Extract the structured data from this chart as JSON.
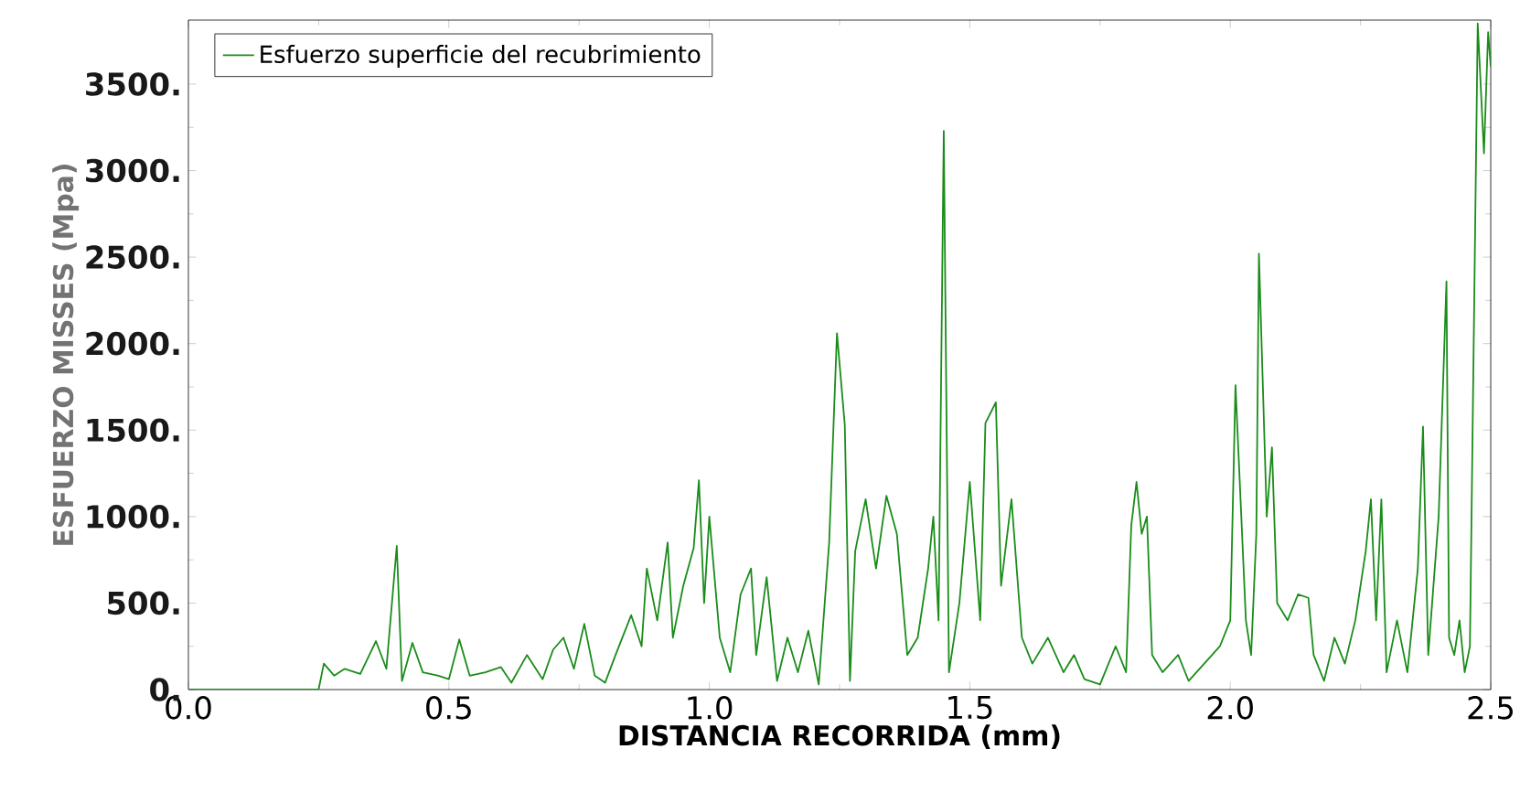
{
  "chart_data": {
    "type": "line",
    "xlabel": "DISTANCIA RECORRIDA (mm)",
    "ylabel": "ESFUERZO MISSES (Mpa)",
    "legend": "top left",
    "xlim": [
      0,
      2.5
    ],
    "ylim": [
      0,
      3870
    ],
    "xticks": [
      {
        "value": 0,
        "label": "0.0"
      },
      {
        "value": 0.5,
        "label": "0.5"
      },
      {
        "value": 1,
        "label": "1.0"
      },
      {
        "value": 1.5,
        "label": "1.5"
      },
      {
        "value": 2,
        "label": "2.0"
      },
      {
        "value": 2.5,
        "label": "2.5"
      }
    ],
    "yticks": [
      {
        "value": 0,
        "label": "0."
      },
      {
        "value": 500,
        "label": "500."
      },
      {
        "value": 1000,
        "label": "1000."
      },
      {
        "value": 1500,
        "label": "1500."
      },
      {
        "value": 2000,
        "label": "2000."
      },
      {
        "value": 2500,
        "label": "2500."
      },
      {
        "value": 3000,
        "label": "3000."
      },
      {
        "value": 3500,
        "label": "3500."
      }
    ],
    "series": [
      {
        "name": "Esfuerzo superficie del recubrimiento",
        "color": "#1a8c1a",
        "x": [
          0,
          0.25,
          0.26,
          0.28,
          0.3,
          0.33,
          0.36,
          0.38,
          0.4,
          0.41,
          0.43,
          0.45,
          0.48,
          0.5,
          0.52,
          0.54,
          0.57,
          0.6,
          0.62,
          0.65,
          0.68,
          0.7,
          0.72,
          0.74,
          0.76,
          0.78,
          0.8,
          0.82,
          0.85,
          0.87,
          0.88,
          0.9,
          0.92,
          0.93,
          0.95,
          0.97,
          0.98,
          0.99,
          1.0,
          1.02,
          1.04,
          1.06,
          1.08,
          1.09,
          1.11,
          1.13,
          1.15,
          1.17,
          1.19,
          1.21,
          1.23,
          1.245,
          1.26,
          1.27,
          1.28,
          1.3,
          1.32,
          1.34,
          1.36,
          1.38,
          1.4,
          1.42,
          1.43,
          1.44,
          1.45,
          1.46,
          1.48,
          1.5,
          1.52,
          1.53,
          1.55,
          1.56,
          1.58,
          1.6,
          1.62,
          1.65,
          1.68,
          1.7,
          1.72,
          1.75,
          1.78,
          1.8,
          1.81,
          1.82,
          1.83,
          1.84,
          1.85,
          1.87,
          1.9,
          1.92,
          1.95,
          1.98,
          2.0,
          2.01,
          2.03,
          2.04,
          2.05,
          2.055,
          2.07,
          2.08,
          2.09,
          2.11,
          2.13,
          2.15,
          2.16,
          2.18,
          2.2,
          2.22,
          2.24,
          2.26,
          2.27,
          2.28,
          2.29,
          2.3,
          2.32,
          2.34,
          2.36,
          2.37,
          2.38,
          2.4,
          2.415,
          2.42,
          2.43,
          2.44,
          2.45,
          2.46,
          2.475,
          2.487,
          2.495,
          2.5
        ],
        "values": [
          0,
          0,
          150,
          80,
          120,
          90,
          280,
          120,
          830,
          50,
          270,
          100,
          80,
          60,
          290,
          80,
          100,
          130,
          40,
          200,
          60,
          230,
          300,
          120,
          380,
          80,
          40,
          200,
          430,
          250,
          700,
          400,
          850,
          300,
          600,
          820,
          1210,
          500,
          1000,
          300,
          100,
          550,
          700,
          200,
          650,
          50,
          300,
          100,
          340,
          30,
          850,
          2060,
          1530,
          50,
          800,
          1100,
          700,
          1120,
          900,
          200,
          300,
          700,
          1000,
          400,
          3230,
          100,
          500,
          1200,
          400,
          1540,
          1660,
          600,
          1100,
          300,
          150,
          300,
          100,
          200,
          60,
          30,
          250,
          100,
          950,
          1200,
          900,
          1000,
          200,
          100,
          200,
          50,
          150,
          250,
          400,
          1760,
          400,
          200,
          900,
          2520,
          1000,
          1400,
          500,
          400,
          550,
          530,
          200,
          50,
          300,
          150,
          400,
          800,
          1100,
          400,
          1100,
          100,
          400,
          100,
          700,
          1520,
          200,
          1000,
          2360,
          300,
          200,
          400,
          100,
          250,
          3850,
          3100,
          3800,
          3600
        ]
      }
    ]
  }
}
